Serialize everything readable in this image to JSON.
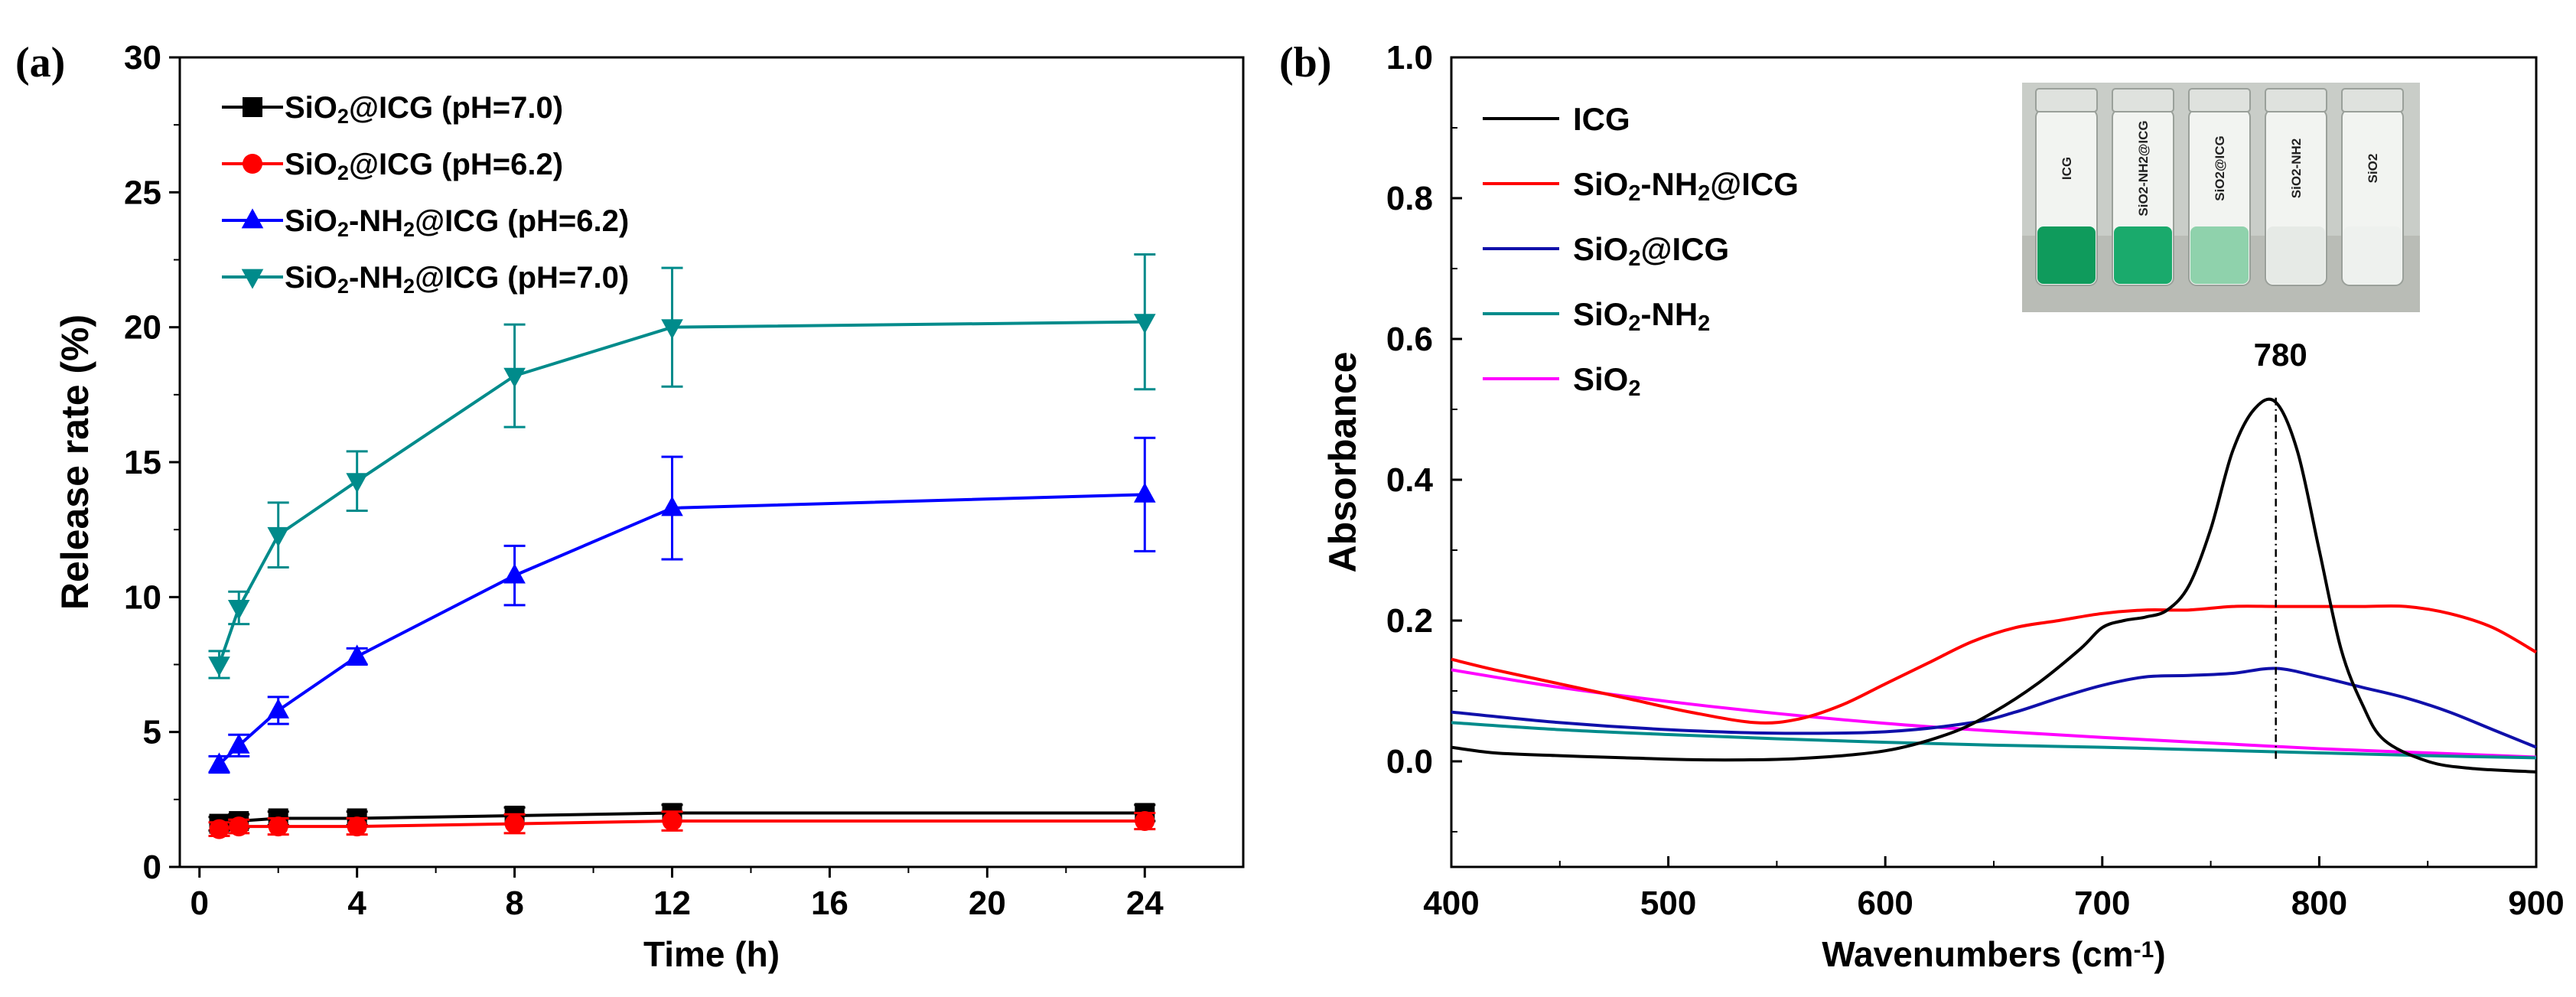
{
  "chart_data": [
    {
      "panel": "(a)",
      "type": "line",
      "xlabel": "Time (h)",
      "ylabel": "Release rate (%)",
      "xlim": [
        -0.5,
        26.5
      ],
      "ylim": [
        0,
        30
      ],
      "xticks": [
        0,
        4,
        8,
        12,
        16,
        20,
        24
      ],
      "yticks": [
        0,
        5,
        10,
        15,
        20,
        25,
        30
      ],
      "legend_position": "top-left",
      "series": [
        {
          "name": "SiO2@ICG (pH=7.0)",
          "name_parts": [
            "SiO",
            "2",
            "@ICG (pH=7.0)"
          ],
          "color": "#000000",
          "marker": "square",
          "x": [
            0.5,
            1,
            2,
            4,
            8,
            12,
            24
          ],
          "y": [
            1.6,
            1.7,
            1.8,
            1.8,
            1.9,
            2.0,
            2.0
          ],
          "err": [
            0.25,
            0.25,
            0.25,
            0.25,
            0.3,
            0.3,
            0.3
          ]
        },
        {
          "name": "SiO2@ICG (pH=6.2)",
          "name_parts": [
            "SiO",
            "2",
            "@ICG (pH=6.2)"
          ],
          "color": "#ff0000",
          "marker": "circle",
          "x": [
            0.5,
            1,
            2,
            4,
            8,
            12,
            24
          ],
          "y": [
            1.4,
            1.5,
            1.5,
            1.5,
            1.6,
            1.7,
            1.7
          ],
          "err": [
            0.25,
            0.25,
            0.3,
            0.3,
            0.35,
            0.35,
            0.3
          ]
        },
        {
          "name": "SiO2-NH2@ICG (pH=6.2)",
          "name_parts": [
            "SiO",
            "2",
            "-NH",
            "2",
            "@ICG (pH=6.2)"
          ],
          "color": "#0000ff",
          "marker": "triangle-up",
          "x": [
            0.5,
            1,
            2,
            4,
            8,
            12,
            24
          ],
          "y": [
            3.8,
            4.5,
            5.8,
            7.8,
            10.8,
            13.3,
            13.8
          ],
          "err": [
            0.3,
            0.4,
            0.5,
            0.3,
            1.1,
            1.9,
            2.1
          ]
        },
        {
          "name": "SiO2-NH2@ICG (pH=7.0)",
          "name_parts": [
            "SiO",
            "2",
            "-NH",
            "2",
            "@ICG (pH=7.0)"
          ],
          "color": "#008b8b",
          "marker": "triangle-down",
          "x": [
            0.5,
            1,
            2,
            4,
            8,
            12,
            24
          ],
          "y": [
            7.5,
            9.6,
            12.3,
            14.3,
            18.2,
            20.0,
            20.2
          ],
          "err": [
            0.5,
            0.6,
            1.2,
            1.1,
            1.9,
            2.2,
            2.5
          ]
        }
      ]
    },
    {
      "panel": "(b)",
      "type": "line",
      "xlabel": "Wavenumbers (cm-1)",
      "xlabel_parts": [
        "Wavenumbers (cm",
        "-1",
        ")"
      ],
      "ylabel": "Absorbance",
      "xlim": [
        400,
        900
      ],
      "ylim": [
        -0.15,
        1.0
      ],
      "xticks": [
        400,
        500,
        600,
        700,
        800,
        900
      ],
      "yticks": [
        0.0,
        0.2,
        0.4,
        0.6,
        0.8,
        1.0
      ],
      "ytick_labels": [
        "0.0",
        "0.2",
        "0.4",
        "0.6",
        "0.8",
        "1.0"
      ],
      "legend_position": "top-left",
      "annotation": {
        "text": "780",
        "x": 780,
        "y_top": 0.51,
        "y_bottom": 0.0
      },
      "inset_photo": {
        "vial_labels": [
          "ICG",
          "SiO2-NH2@ICG",
          "SiO2@ICG",
          "SiO2-NH2",
          "SiO2"
        ]
      },
      "series": [
        {
          "name": "ICG",
          "name_parts": [
            "ICG"
          ],
          "color": "#000000",
          "x": [
            400,
            420,
            450,
            480,
            520,
            560,
            600,
            630,
            650,
            670,
            690,
            700,
            710,
            720,
            730,
            740,
            750,
            760,
            770,
            780,
            790,
            800,
            810,
            820,
            830,
            850,
            870,
            900
          ],
          "y": [
            0.02,
            0.012,
            0.008,
            0.005,
            0.002,
            0.004,
            0.015,
            0.04,
            0.07,
            0.11,
            0.16,
            0.19,
            0.2,
            0.205,
            0.215,
            0.25,
            0.33,
            0.44,
            0.5,
            0.51,
            0.44,
            0.3,
            0.16,
            0.08,
            0.03,
            0.0,
            -0.01,
            -0.015
          ]
        },
        {
          "name": "SiO2-NH2@ICG",
          "name_parts": [
            "SiO",
            "2",
            "-NH",
            "2",
            "@ICG"
          ],
          "color": "#ff0000",
          "x": [
            400,
            420,
            450,
            480,
            510,
            540,
            560,
            580,
            600,
            620,
            640,
            660,
            680,
            700,
            720,
            740,
            760,
            780,
            800,
            820,
            840,
            860,
            880,
            900
          ],
          "y": [
            0.145,
            0.13,
            0.11,
            0.09,
            0.07,
            0.055,
            0.06,
            0.08,
            0.11,
            0.14,
            0.17,
            0.19,
            0.2,
            0.21,
            0.215,
            0.215,
            0.22,
            0.22,
            0.22,
            0.22,
            0.22,
            0.21,
            0.19,
            0.155
          ]
        },
        {
          "name": "SiO2@ICG",
          "name_parts": [
            "SiO",
            "2",
            "@ICG"
          ],
          "color": "#1010aa",
          "x": [
            400,
            450,
            500,
            550,
            600,
            640,
            660,
            680,
            700,
            720,
            740,
            760,
            780,
            800,
            820,
            840,
            860,
            880,
            900
          ],
          "y": [
            0.07,
            0.055,
            0.045,
            0.04,
            0.042,
            0.055,
            0.07,
            0.09,
            0.108,
            0.12,
            0.122,
            0.125,
            0.132,
            0.12,
            0.105,
            0.09,
            0.07,
            0.045,
            0.02
          ]
        },
        {
          "name": "SiO2-NH2",
          "name_parts": [
            "SiO",
            "2",
            "-NH",
            "2"
          ],
          "color": "#008b8b",
          "x": [
            400,
            450,
            500,
            550,
            600,
            650,
            700,
            750,
            800,
            850,
            900
          ],
          "y": [
            0.055,
            0.045,
            0.038,
            0.032,
            0.027,
            0.023,
            0.02,
            0.016,
            0.012,
            0.008,
            0.005
          ]
        },
        {
          "name": "SiO2",
          "name_parts": [
            "SiO",
            "2"
          ],
          "color": "#ff00ff",
          "x": [
            400,
            450,
            500,
            550,
            600,
            650,
            700,
            750,
            800,
            850,
            900
          ],
          "y": [
            0.13,
            0.105,
            0.085,
            0.068,
            0.054,
            0.043,
            0.034,
            0.026,
            0.018,
            0.012,
            0.006
          ]
        }
      ]
    }
  ]
}
